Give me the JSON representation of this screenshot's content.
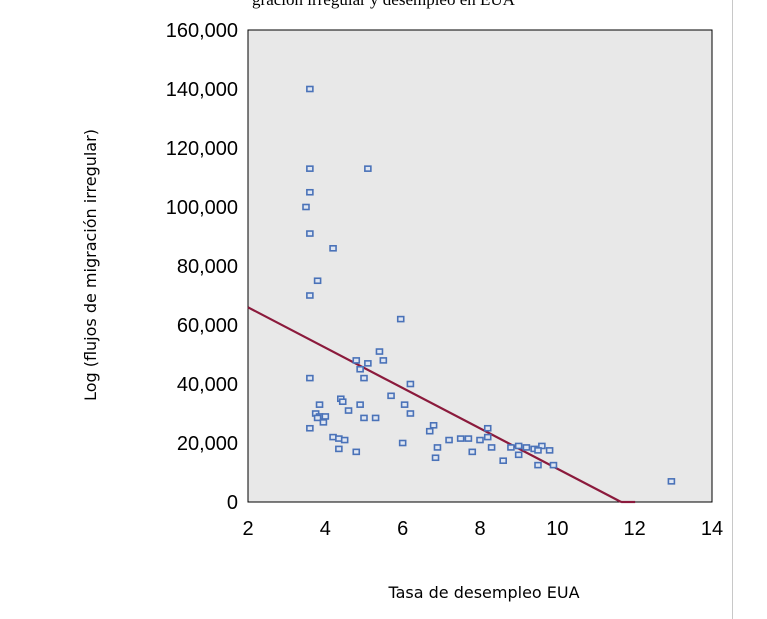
{
  "header": {
    "caption": "gración irregular y desempleo en EUA"
  },
  "chart_data": {
    "type": "scatter",
    "title": "",
    "xlabel": "Tasa de desempleo EUA",
    "ylabel": "Log (flujos de migración irregular)",
    "xlim": [
      2,
      14
    ],
    "ylim": [
      0,
      160000
    ],
    "x_ticks": [
      2,
      4,
      6,
      8,
      10,
      12,
      14
    ],
    "x_tick_labels": [
      "2",
      "4",
      "6",
      "8",
      "10",
      "12",
      "14"
    ],
    "y_ticks": [
      0,
      20000,
      40000,
      60000,
      80000,
      100000,
      120000,
      140000,
      160000
    ],
    "y_tick_labels": [
      "0",
      "20,000",
      "40,000",
      "60,000",
      "80,000",
      "100,000",
      "120,000",
      "140,000",
      "160,000"
    ],
    "grid": false,
    "plot_background": "#e8e8e8",
    "marker_color": "#4a72b8",
    "fit_line_color": "#8b1a3c",
    "fit_line": {
      "x": [
        2,
        11.65
      ],
      "y": [
        66000,
        0
      ]
    },
    "points": [
      {
        "x": 3.6,
        "y": 140000
      },
      {
        "x": 3.6,
        "y": 113000
      },
      {
        "x": 5.1,
        "y": 113000
      },
      {
        "x": 3.6,
        "y": 105000
      },
      {
        "x": 3.5,
        "y": 100000
      },
      {
        "x": 3.6,
        "y": 91000
      },
      {
        "x": 4.2,
        "y": 86000
      },
      {
        "x": 3.8,
        "y": 75000
      },
      {
        "x": 3.6,
        "y": 70000
      },
      {
        "x": 5.95,
        "y": 62000
      },
      {
        "x": 5.4,
        "y": 51000
      },
      {
        "x": 4.8,
        "y": 48000
      },
      {
        "x": 5.5,
        "y": 48000
      },
      {
        "x": 5.1,
        "y": 47000
      },
      {
        "x": 4.9,
        "y": 45000
      },
      {
        "x": 5.0,
        "y": 42000
      },
      {
        "x": 3.6,
        "y": 42000
      },
      {
        "x": 6.2,
        "y": 40000
      },
      {
        "x": 5.7,
        "y": 36000
      },
      {
        "x": 4.4,
        "y": 35000
      },
      {
        "x": 4.45,
        "y": 34000
      },
      {
        "x": 4.9,
        "y": 33000
      },
      {
        "x": 3.85,
        "y": 33000
      },
      {
        "x": 6.05,
        "y": 33000
      },
      {
        "x": 4.6,
        "y": 31000
      },
      {
        "x": 6.2,
        "y": 30000
      },
      {
        "x": 3.75,
        "y": 30000
      },
      {
        "x": 3.85,
        "y": 29000
      },
      {
        "x": 4.0,
        "y": 29000
      },
      {
        "x": 3.8,
        "y": 28500
      },
      {
        "x": 5.0,
        "y": 28500
      },
      {
        "x": 5.3,
        "y": 28500
      },
      {
        "x": 3.95,
        "y": 27000
      },
      {
        "x": 3.6,
        "y": 25000
      },
      {
        "x": 6.8,
        "y": 26000
      },
      {
        "x": 6.7,
        "y": 24000
      },
      {
        "x": 4.2,
        "y": 22000
      },
      {
        "x": 4.35,
        "y": 21500
      },
      {
        "x": 4.5,
        "y": 21000
      },
      {
        "x": 8.2,
        "y": 25000
      },
      {
        "x": 8.2,
        "y": 22000
      },
      {
        "x": 7.5,
        "y": 21500
      },
      {
        "x": 7.7,
        "y": 21500
      },
      {
        "x": 7.2,
        "y": 21000
      },
      {
        "x": 8.0,
        "y": 21000
      },
      {
        "x": 6.0,
        "y": 20000
      },
      {
        "x": 6.9,
        "y": 18500
      },
      {
        "x": 8.3,
        "y": 18500
      },
      {
        "x": 9.0,
        "y": 19000
      },
      {
        "x": 8.8,
        "y": 18500
      },
      {
        "x": 9.2,
        "y": 18500
      },
      {
        "x": 9.4,
        "y": 18000
      },
      {
        "x": 9.6,
        "y": 19000
      },
      {
        "x": 9.8,
        "y": 17500
      },
      {
        "x": 9.5,
        "y": 17500
      },
      {
        "x": 4.35,
        "y": 18000
      },
      {
        "x": 4.8,
        "y": 17000
      },
      {
        "x": 7.8,
        "y": 17000
      },
      {
        "x": 9.0,
        "y": 16000
      },
      {
        "x": 6.85,
        "y": 15000
      },
      {
        "x": 8.6,
        "y": 14000
      },
      {
        "x": 9.5,
        "y": 12500
      },
      {
        "x": 9.9,
        "y": 12500
      },
      {
        "x": 12.95,
        "y": 7000
      }
    ]
  }
}
